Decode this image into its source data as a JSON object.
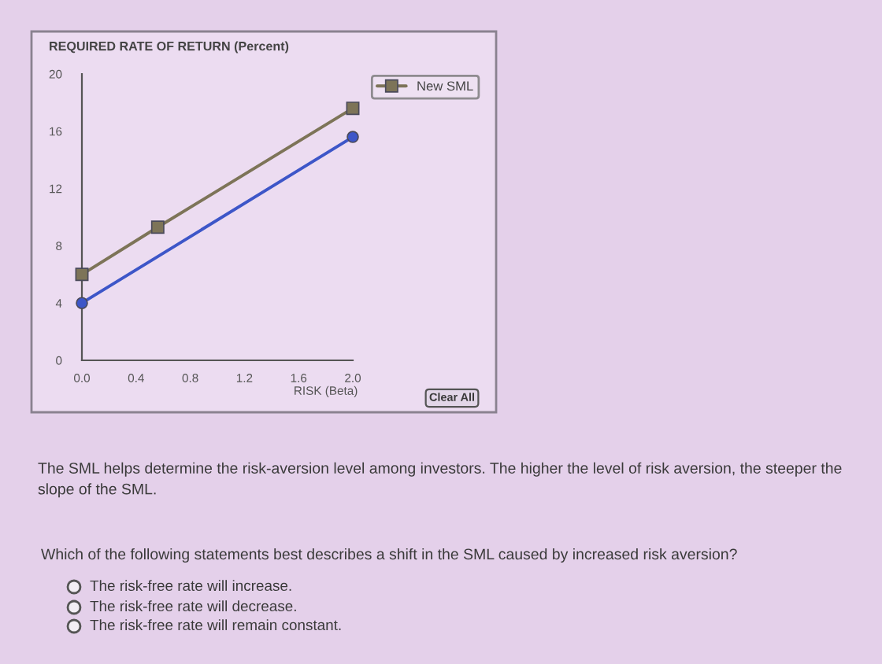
{
  "chart_data": {
    "type": "line",
    "title": "REQUIRED RATE OF RETURN (Percent)",
    "xlabel": "RISK (Beta)",
    "xlim": [
      0,
      2.0
    ],
    "xticks": [
      {
        "value": 0,
        "label": "0.0"
      },
      {
        "value": 0.4,
        "label": "0.4"
      },
      {
        "value": 0.8,
        "label": "0.8"
      },
      {
        "value": 1.2,
        "label": "1.2"
      },
      {
        "value": 1.6,
        "label": "1.6"
      },
      {
        "value": 2.0,
        "label": "2.0"
      }
    ],
    "ylim": [
      0,
      20
    ],
    "yticks": [
      0,
      4,
      8,
      12,
      16,
      20
    ],
    "legend": "top right",
    "series": [
      {
        "name": "New SML",
        "color": "#7d7458",
        "marker": "square",
        "x": [
          0,
          0.56,
          2.0
        ],
        "values": [
          6,
          9.3,
          17.6
        ]
      },
      {
        "color": "#3d56c8",
        "marker": "circle",
        "x": [
          0,
          2.0
        ],
        "values": [
          4,
          15.6
        ]
      }
    ],
    "annotations": [
      "Clear All",
      "The SML helps determine the risk-aversion level among investors. The higher the level of risk aversion, the steeper the slope of the SML.",
      "Which of the following statements best describes a shift in the SML caused by increased risk aversion?",
      "The risk-free rate will increase.",
      "The risk-free rate will decrease.",
      "The risk-free rate will remain constant."
    ]
  }
}
